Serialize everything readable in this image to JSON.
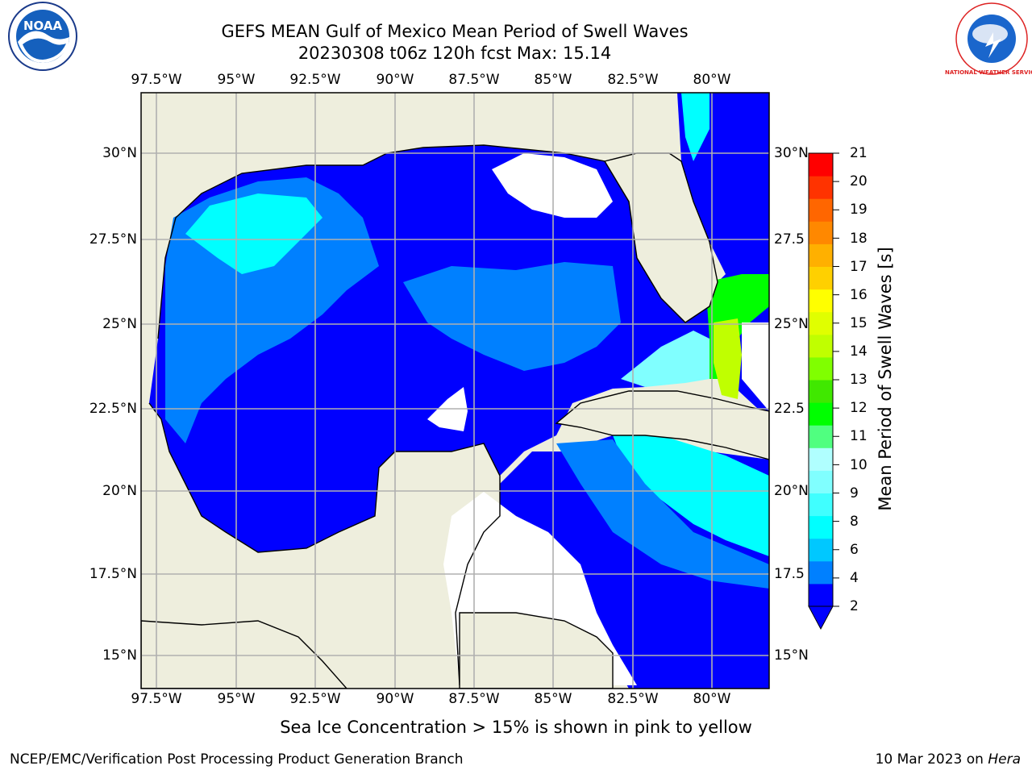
{
  "title_line1": "GEFS MEAN Gulf of Mexico Mean Period of Swell Waves",
  "title_line2": "20230308 t06z 120h fcst   Max: 15.14",
  "lon_labels": [
    "97.5°W",
    "95°W",
    "92.5°W",
    "90°W",
    "87.5°W",
    "85°W",
    "82.5°W",
    "80°W"
  ],
  "lat_labels_left": [
    "30°N",
    "27.5°N",
    "25°N",
    "22.5°N",
    "20°N",
    "17.5°N",
    "15°N"
  ],
  "lat_labels_right": [
    "30°N",
    "27.5",
    "25°N",
    "22.5",
    "20°N",
    "17.5",
    "15°N"
  ],
  "colorbar": {
    "label": "Mean Period of Swell Waves [s]",
    "ticks": [
      "21",
      "20",
      "19",
      "18",
      "17",
      "16",
      "15",
      "14",
      "13",
      "12",
      "11",
      "10",
      "9",
      "8",
      "6",
      "4",
      "2"
    ],
    "colors": [
      "#0000ff",
      "#0080ff",
      "#00c8ff",
      "#00ffff",
      "#40ffff",
      "#80ffff",
      "#b0ffff",
      "#50ff80",
      "#00ff00",
      "#40e800",
      "#80ff00",
      "#c0ff00",
      "#e0ff00",
      "#ffff00",
      "#ffd000",
      "#ffb000",
      "#ff8800",
      "#ff6600",
      "#ff3300",
      "#ff0000"
    ]
  },
  "logos": {
    "left": "NOAA",
    "right": "NATIONAL WEATHER SERVICE"
  },
  "note": "Sea Ice Concentration > 15% is shown in pink to yellow",
  "credit": "NCEP/EMC/Verification Post Processing Product Generation Branch",
  "date": "10 Mar 2023 on",
  "machine": "Hera",
  "colors": {
    "land": "#eeeedd",
    "grid": "#b0b0b0",
    "sea_deep": "#0000ff",
    "sea_mid": "#0080ff",
    "sea_light": "#00ffff"
  }
}
